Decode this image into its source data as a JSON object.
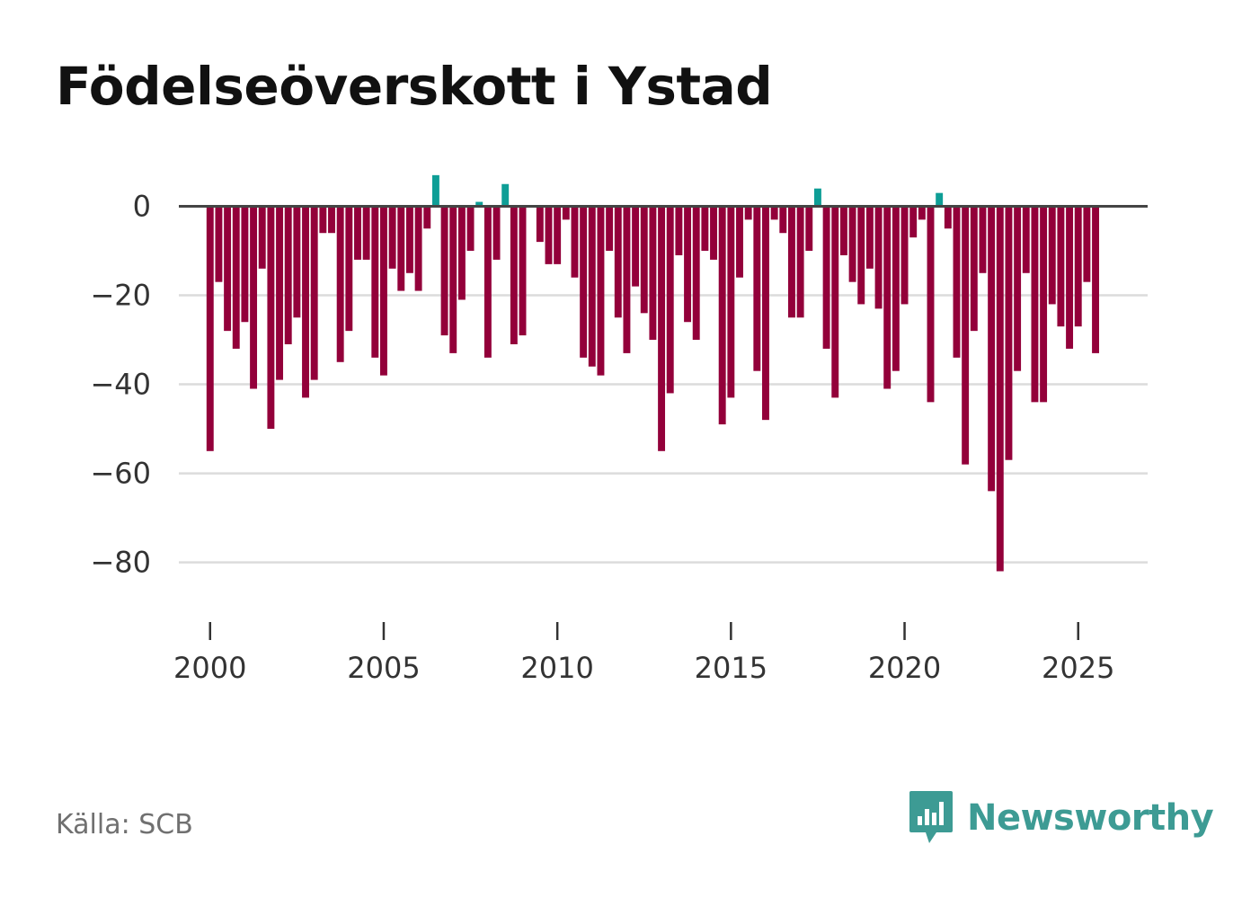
{
  "chart_data": {
    "type": "bar",
    "title": "Födelseöverskott i Ystad",
    "xlabel": "",
    "ylabel": "",
    "x_start": 2000.0,
    "x_step": 0.25,
    "values": [
      -55,
      -17,
      -28,
      -32,
      -26,
      -41,
      -14,
      -50,
      -39,
      -31,
      -25,
      -43,
      -39,
      -6,
      -6,
      -35,
      -28,
      -12,
      -12,
      -34,
      -38,
      -14,
      -19,
      -15,
      -19,
      -5,
      7,
      -29,
      -33,
      -21,
      -10,
      1,
      -34,
      -12,
      5,
      -31,
      -29,
      0,
      -8,
      -13,
      -13,
      -3,
      -16,
      -34,
      -36,
      -38,
      -10,
      -25,
      -33,
      -18,
      -24,
      -30,
      -55,
      -42,
      -11,
      -26,
      -30,
      -10,
      -12,
      -49,
      -43,
      -16,
      -3,
      -37,
      -48,
      -3,
      -6,
      -25,
      -25,
      -10,
      4,
      -32,
      -43,
      -11,
      -17,
      -22,
      -14,
      -23,
      -41,
      -37,
      -22,
      -7,
      -3,
      -44,
      3,
      -5,
      -34,
      -58,
      -28,
      -15,
      -64,
      -82,
      -57,
      -37,
      -15,
      -44,
      -44,
      -22,
      -27,
      -32,
      -27,
      -17,
      -33
    ],
    "ylim": [
      -92,
      10
    ],
    "yticks": [
      0,
      -20,
      -40,
      -60,
      -80
    ],
    "ytick_labels": [
      "0",
      "−20",
      "−40",
      "−60",
      "−80"
    ],
    "xticks": [
      2000,
      2005,
      2010,
      2015,
      2020,
      2025
    ],
    "xtick_labels": [
      "2000",
      "2005",
      "2010",
      "2015",
      "2020",
      "2025"
    ],
    "xlim": [
      1999.1,
      2027.0
    ],
    "grid": true,
    "colors": {
      "positive": "#0e9e96",
      "negative": "#93003a",
      "grid": "#dcdcdc",
      "zero": "#444444"
    }
  },
  "source": "Källa: SCB",
  "brand": {
    "name": "Newsworthy",
    "icon": "bar-chart-speech-bubble-icon",
    "color": "#3d9b94"
  }
}
